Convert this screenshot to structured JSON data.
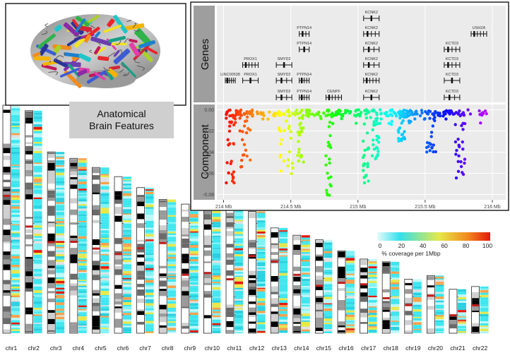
{
  "brain_caption": {
    "line1": "Anatomical",
    "line2": "Brain Features"
  },
  "chart_data": {
    "type": "scatter",
    "track_labels": [
      "Genes",
      "Component"
    ],
    "x_ticks": [
      "214 Mb",
      "214.5 Mb",
      "215 Mb",
      "215.5 Mb",
      "216 Mb"
    ],
    "x_tick_values": [
      214,
      214.5,
      215,
      215.5,
      216
    ],
    "xlim": [
      213.95,
      216.1
    ],
    "y_ticks": [
      0.0,
      -0.02,
      -0.04,
      -0.06,
      -0.08
    ],
    "ylim": [
      -0.085,
      0.005
    ],
    "color_scale": "rainbow by genomic position (red = left, violet = right)",
    "genes": [
      {
        "name": "KCNK2",
        "x": 215.1,
        "row": 0
      },
      {
        "name": "PTPN14",
        "x": 214.6,
        "row": 1
      },
      {
        "name": "KCNK2",
        "x": 215.1,
        "row": 1
      },
      {
        "name": "USH2A",
        "x": 215.9,
        "row": 1
      },
      {
        "name": "PTPN14",
        "x": 214.6,
        "row": 2
      },
      {
        "name": "KCNK2",
        "x": 215.1,
        "row": 2
      },
      {
        "name": "KCTD3",
        "x": 215.7,
        "row": 2
      },
      {
        "name": "PROX1",
        "x": 214.2,
        "row": 3
      },
      {
        "name": "SMYD2",
        "x": 214.45,
        "row": 3
      },
      {
        "name": "KCNK2",
        "x": 215.1,
        "row": 3
      },
      {
        "name": "KCTD3",
        "x": 215.7,
        "row": 3
      },
      {
        "name": "LINC00538",
        "x": 214.05,
        "row": 4
      },
      {
        "name": "PROX1",
        "x": 214.2,
        "row": 4
      },
      {
        "name": "SMYD2",
        "x": 214.45,
        "row": 4
      },
      {
        "name": "PTPN14",
        "x": 214.6,
        "row": 4
      },
      {
        "name": "KCNK2",
        "x": 215.1,
        "row": 4
      },
      {
        "name": "KCTD3",
        "x": 215.7,
        "row": 4
      },
      {
        "name": "SMYD2",
        "x": 214.45,
        "row": 5
      },
      {
        "name": "PTPN14",
        "x": 214.6,
        "row": 5
      },
      {
        "name": "CENPF",
        "x": 214.82,
        "row": 5
      },
      {
        "name": "KCNK2",
        "x": 215.1,
        "row": 5
      },
      {
        "name": "KCTD3",
        "x": 215.7,
        "row": 5
      }
    ],
    "clusters": [
      {
        "x0": 214.02,
        "x1": 214.08,
        "ymin": -0.07
      },
      {
        "x0": 214.12,
        "x1": 214.2,
        "ymin": -0.055
      },
      {
        "x0": 214.4,
        "x1": 214.52,
        "ymin": -0.062
      },
      {
        "x0": 214.55,
        "x1": 214.6,
        "ymin": -0.05
      },
      {
        "x0": 214.76,
        "x1": 214.8,
        "ymin": -0.082
      },
      {
        "x0": 215.03,
        "x1": 215.08,
        "ymin": -0.073
      },
      {
        "x0": 215.1,
        "x1": 215.16,
        "ymin": -0.05
      },
      {
        "x0": 215.3,
        "x1": 215.35,
        "ymin": -0.03
      },
      {
        "x0": 215.5,
        "x1": 215.58,
        "ymin": -0.04
      },
      {
        "x0": 215.72,
        "x1": 215.8,
        "ymin": -0.066
      }
    ],
    "legend": {
      "ticks": [
        "0",
        "20",
        "40",
        "60",
        "80",
        "100"
      ],
      "label": "% coverage per 1Mbp"
    },
    "chromosomes": [
      {
        "name": "chr1",
        "length_mb": 249
      },
      {
        "name": "chr2",
        "length_mb": 243
      },
      {
        "name": "chr3",
        "length_mb": 198
      },
      {
        "name": "chr4",
        "length_mb": 191
      },
      {
        "name": "chr5",
        "length_mb": 181
      },
      {
        "name": "chr6",
        "length_mb": 171
      },
      {
        "name": "chr7",
        "length_mb": 159
      },
      {
        "name": "chr8",
        "length_mb": 146
      },
      {
        "name": "chr9",
        "length_mb": 141
      },
      {
        "name": "chr10",
        "length_mb": 135
      },
      {
        "name": "chr11",
        "length_mb": 135
      },
      {
        "name": "chr12",
        "length_mb": 133
      },
      {
        "name": "chr13",
        "length_mb": 115
      },
      {
        "name": "chr14",
        "length_mb": 107
      },
      {
        "name": "chr15",
        "length_mb": 102
      },
      {
        "name": "chr16",
        "length_mb": 90
      },
      {
        "name": "chr17",
        "length_mb": 81
      },
      {
        "name": "chr18",
        "length_mb": 78
      },
      {
        "name": "chr19",
        "length_mb": 59
      },
      {
        "name": "chr20",
        "length_mb": 63
      },
      {
        "name": "chr21",
        "length_mb": 48
      },
      {
        "name": "chr22",
        "length_mb": 51
      }
    ]
  }
}
